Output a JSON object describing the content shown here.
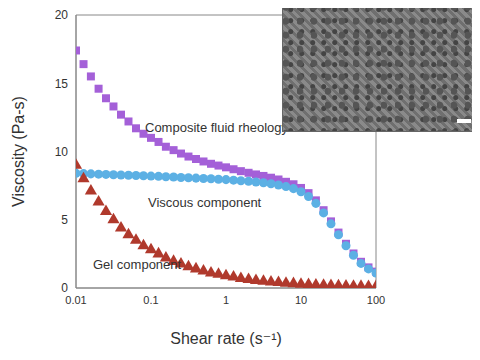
{
  "chart_data": {
    "type": "scatter",
    "x_label": "Shear rate (s⁻¹)",
    "y_label": "Viscosity (Pa-s)",
    "log": "x",
    "grid": false,
    "xlim": [
      0.01,
      100
    ],
    "xticks": [
      0.01,
      0.1,
      1,
      10,
      100
    ],
    "ylim": [
      0,
      20
    ],
    "yticks": [
      0,
      5,
      10,
      15,
      20
    ],
    "x": [
      0.01,
      0.0126,
      0.0158,
      0.02,
      0.0251,
      0.0316,
      0.0398,
      0.0501,
      0.0631,
      0.0794,
      0.1,
      0.126,
      0.158,
      0.2,
      0.251,
      0.316,
      0.398,
      0.501,
      0.631,
      0.794,
      1,
      1.26,
      1.58,
      2,
      2.51,
      3.16,
      3.98,
      5.01,
      6.31,
      7.94,
      10,
      12.6,
      15.8,
      20,
      25.1,
      31.6,
      39.8,
      50.1,
      63.1,
      79.4,
      100
    ],
    "series": [
      {
        "name": "Composite fluid rheology",
        "color": "#a460d8",
        "marker": "square",
        "values": [
          17.4,
          16.4,
          15.5,
          14.6,
          13.9,
          13.3,
          12.7,
          12.2,
          11.7,
          11.3,
          11.0,
          10.7,
          10.35,
          10.1,
          9.85,
          9.63,
          9.45,
          9.27,
          9.1,
          8.97,
          8.84,
          8.7,
          8.56,
          8.44,
          8.32,
          8.21,
          8.08,
          7.95,
          7.78,
          7.6,
          7.33,
          6.95,
          6.42,
          5.7,
          4.88,
          4.06,
          3.24,
          2.53,
          1.92,
          1.51,
          1.2
        ]
      },
      {
        "name": "Viscous component",
        "color": "#5cb0e4",
        "marker": "circle",
        "values": [
          8.4,
          8.38,
          8.36,
          8.34,
          8.32,
          8.3,
          8.28,
          8.26,
          8.24,
          8.22,
          8.2,
          8.18,
          8.15,
          8.13,
          8.1,
          8.08,
          8.05,
          8.02,
          8.0,
          7.97,
          7.94,
          7.9,
          7.86,
          7.82,
          7.77,
          7.71,
          7.64,
          7.55,
          7.43,
          7.28,
          7.05,
          6.7,
          6.2,
          5.5,
          4.7,
          3.9,
          3.1,
          2.4,
          1.8,
          1.4,
          1.1
        ]
      },
      {
        "name": "Gel component",
        "color": "#b0392c",
        "marker": "triangle",
        "values": [
          9.0,
          8.0,
          7.1,
          6.3,
          5.6,
          5.0,
          4.4,
          3.9,
          3.5,
          3.1,
          2.8,
          2.5,
          2.2,
          1.95,
          1.75,
          1.55,
          1.4,
          1.25,
          1.1,
          1.0,
          0.9,
          0.8,
          0.7,
          0.62,
          0.55,
          0.5,
          0.44,
          0.4,
          0.35,
          0.32,
          0.28,
          0.25,
          0.22,
          0.2,
          0.18,
          0.16,
          0.14,
          0.13,
          0.12,
          0.11,
          0.1
        ]
      }
    ]
  }
}
